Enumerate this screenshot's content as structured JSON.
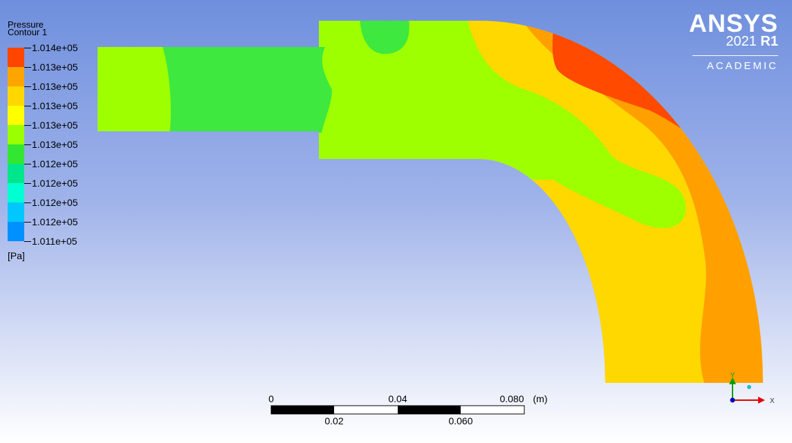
{
  "legend": {
    "title_line1": "Pressure",
    "title_line2": "Contour 1",
    "unit": "[Pa]",
    "levels": [
      "1.014e+05",
      "1.013e+05",
      "1.013e+05",
      "1.013e+05",
      "1.013e+05",
      "1.013e+05",
      "1.012e+05",
      "1.012e+05",
      "1.012e+05",
      "1.012e+05",
      "1.011e+05"
    ],
    "colors": [
      "#ff4500",
      "#ffa500",
      "#ffd700",
      "#ffff00",
      "#9aff00",
      "#32e632",
      "#00e68c",
      "#00ffd2",
      "#00c8ff",
      "#0090ff",
      "#0000ff"
    ]
  },
  "logo": {
    "brand": "ANSYS",
    "version": "2021",
    "release": "R1",
    "edition": "ACADEMIC"
  },
  "scale_bar": {
    "top_labels": [
      "0",
      "0.04",
      "0.080",
      "(m)"
    ],
    "bottom_labels": [
      "0.02",
      "0.060"
    ]
  },
  "axes": {
    "y": "Y",
    "x": "X"
  }
}
